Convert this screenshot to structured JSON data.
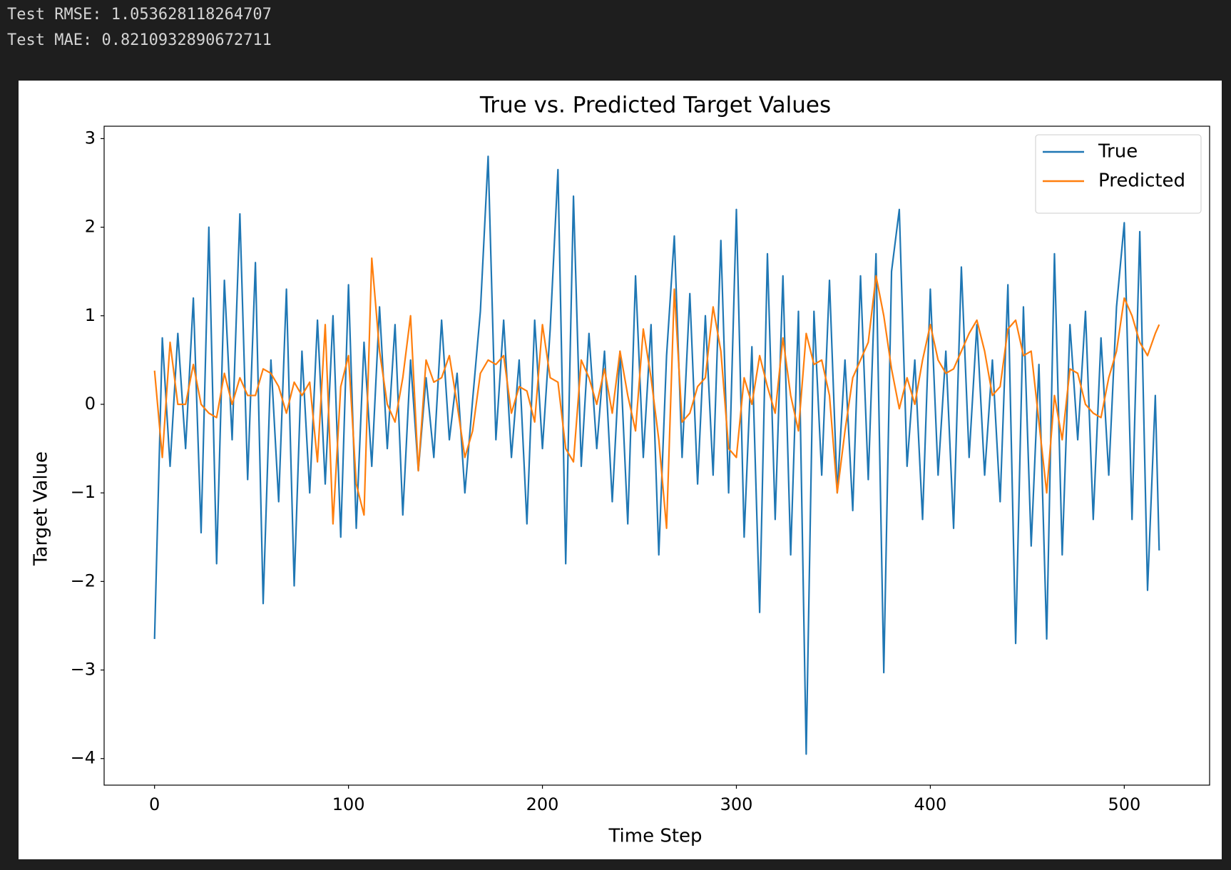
{
  "console_output": [
    "Test RMSE: 1.053628118264707",
    "Test MAE: 0.8210932890672711"
  ],
  "chart_data": {
    "type": "line",
    "title": "True vs. Predicted Target Values",
    "x_label": "Time Step",
    "y_label": "Target Value",
    "x": [
      0,
      4,
      8,
      12,
      16,
      20,
      24,
      28,
      32,
      36,
      40,
      44,
      48,
      52,
      56,
      60,
      64,
      68,
      72,
      76,
      80,
      84,
      88,
      92,
      96,
      100,
      104,
      108,
      112,
      116,
      120,
      124,
      128,
      132,
      136,
      140,
      144,
      148,
      152,
      156,
      160,
      164,
      168,
      172,
      176,
      180,
      184,
      188,
      192,
      196,
      200,
      204,
      208,
      212,
      216,
      220,
      224,
      228,
      232,
      236,
      240,
      244,
      248,
      252,
      256,
      260,
      264,
      268,
      272,
      276,
      280,
      284,
      288,
      292,
      296,
      300,
      304,
      308,
      312,
      316,
      320,
      324,
      328,
      332,
      336,
      340,
      344,
      348,
      352,
      356,
      360,
      364,
      368,
      372,
      376,
      380,
      384,
      388,
      392,
      396,
      400,
      404,
      408,
      412,
      416,
      420,
      424,
      428,
      432,
      436,
      440,
      444,
      448,
      452,
      456,
      460,
      464,
      468,
      472,
      476,
      480,
      484,
      488,
      492,
      496,
      500,
      504,
      508,
      512,
      516,
      518
    ],
    "series": [
      {
        "name": "True",
        "color": "#1f77b4",
        "values": [
          -2.65,
          0.75,
          -0.7,
          0.8,
          -0.5,
          1.2,
          -1.45,
          2.0,
          -1.8,
          1.4,
          -0.4,
          2.15,
          -0.85,
          1.6,
          -2.25,
          0.5,
          -1.1,
          1.3,
          -2.05,
          0.6,
          -1.0,
          0.95,
          -0.9,
          1.0,
          -1.5,
          1.35,
          -1.4,
          0.7,
          -0.7,
          1.1,
          -0.5,
          0.9,
          -1.25,
          0.5,
          -0.75,
          0.3,
          -0.6,
          0.95,
          -0.4,
          0.35,
          -1.0,
          0.05,
          1.05,
          2.8,
          -0.4,
          0.95,
          -0.6,
          0.5,
          -1.35,
          0.95,
          -0.5,
          0.85,
          2.65,
          -1.8,
          2.35,
          -0.7,
          0.8,
          -0.5,
          0.6,
          -1.1,
          0.6,
          -1.35,
          1.45,
          -0.6,
          0.9,
          -1.7,
          0.55,
          1.9,
          -0.6,
          1.25,
          -0.9,
          1.0,
          -0.8,
          1.85,
          -1.0,
          2.2,
          -1.5,
          0.65,
          -2.35,
          1.7,
          -1.3,
          1.45,
          -1.7,
          1.05,
          -3.95,
          1.05,
          -0.8,
          1.4,
          -1.0,
          0.5,
          -1.2,
          1.45,
          -0.85,
          1.7,
          -3.03,
          1.5,
          2.2,
          -0.7,
          0.5,
          -1.3,
          1.3,
          -0.8,
          0.6,
          -1.4,
          1.55,
          -0.6,
          0.9,
          -0.8,
          0.5,
          -1.1,
          1.35,
          -2.7,
          1.1,
          -1.6,
          0.45,
          -2.65,
          1.7,
          -1.7,
          0.9,
          -0.4,
          1.05,
          -1.3,
          0.75,
          -0.8,
          1.1,
          2.05,
          -1.3,
          1.95,
          -2.1,
          0.1,
          -1.65
        ]
      },
      {
        "name": "Predicted",
        "color": "#ff7f0e",
        "values": [
          0.38,
          -0.6,
          0.7,
          0.0,
          0.0,
          0.45,
          0.0,
          -0.1,
          -0.15,
          0.35,
          0.0,
          0.3,
          0.1,
          0.1,
          0.4,
          0.35,
          0.2,
          -0.1,
          0.25,
          0.1,
          0.25,
          -0.65,
          0.9,
          -1.35,
          0.2,
          0.55,
          -0.9,
          -1.25,
          1.65,
          0.6,
          0.0,
          -0.2,
          0.3,
          1.0,
          -0.75,
          0.5,
          0.25,
          0.3,
          0.55,
          0.0,
          -0.6,
          -0.3,
          0.35,
          0.5,
          0.45,
          0.55,
          -0.1,
          0.2,
          0.15,
          -0.2,
          0.9,
          0.3,
          0.25,
          -0.5,
          -0.65,
          0.5,
          0.3,
          0.0,
          0.4,
          -0.1,
          0.6,
          0.1,
          -0.3,
          0.85,
          0.3,
          -0.4,
          -1.4,
          1.3,
          -0.2,
          -0.1,
          0.2,
          0.3,
          1.1,
          0.6,
          -0.5,
          -0.6,
          0.3,
          0.0,
          0.55,
          0.2,
          -0.1,
          0.75,
          0.1,
          -0.3,
          0.8,
          0.45,
          0.5,
          0.1,
          -1.0,
          -0.3,
          0.3,
          0.5,
          0.7,
          1.45,
          1.0,
          0.4,
          -0.05,
          0.3,
          0.0,
          0.5,
          0.9,
          0.5,
          0.35,
          0.4,
          0.6,
          0.8,
          0.95,
          0.6,
          0.1,
          0.2,
          0.85,
          0.95,
          0.55,
          0.6,
          -0.2,
          -1.0,
          0.1,
          -0.4,
          0.4,
          0.35,
          0.0,
          -0.1,
          -0.15,
          0.3,
          0.6,
          1.2,
          1.0,
          0.7,
          0.55,
          0.8,
          0.9
        ]
      }
    ],
    "xlim": [
      -26,
      544
    ],
    "ylim": [
      -4.3,
      3.14
    ],
    "xticks": [
      0,
      100,
      200,
      300,
      400,
      500
    ],
    "yticks": [
      {
        "value": -4,
        "label": "−4"
      },
      {
        "value": -3,
        "label": "−3"
      },
      {
        "value": -2,
        "label": "−2"
      },
      {
        "value": -1,
        "label": "−1"
      },
      0,
      1,
      2,
      3
    ],
    "grid": false,
    "legend": "upper right"
  }
}
